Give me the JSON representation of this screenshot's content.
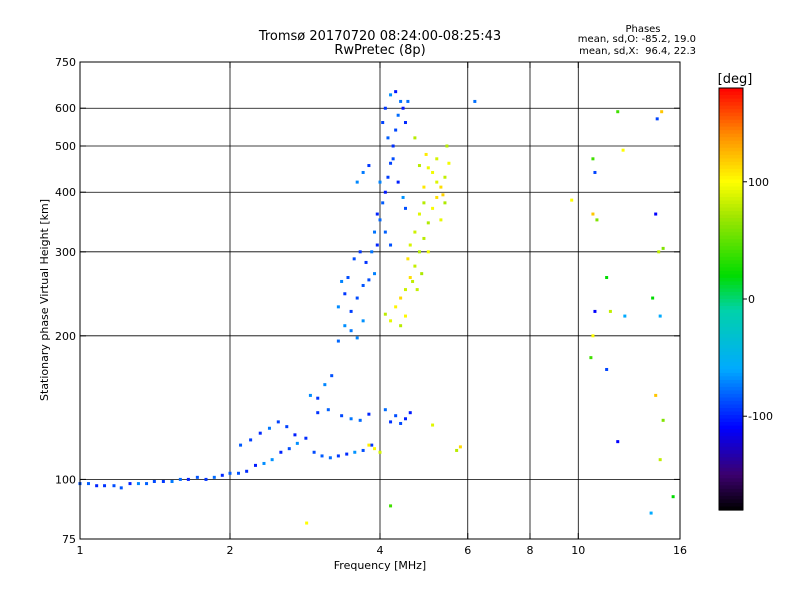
{
  "chart_data": {
    "type": "scatter",
    "title": "Tromsø 20170720 08:24:00-08:25:43",
    "subtitle": "RwPretec (8p)",
    "xlabel": "Frequency [MHz]",
    "ylabel": "Stationary phase Virtual Height [km]",
    "xscale": "log2",
    "yscale": "log",
    "xlim": [
      1,
      16
    ],
    "ylim": [
      75,
      750
    ],
    "x_ticks": [
      1,
      2,
      4,
      6,
      8,
      10,
      16
    ],
    "x_grid": [
      2,
      4,
      6,
      8,
      10
    ],
    "y_ticks": [
      75,
      100,
      200,
      300,
      400,
      500,
      600,
      750
    ],
    "y_grid": [
      100,
      200,
      300,
      400,
      500,
      600
    ],
    "grid": true,
    "phase_stats": {
      "title": "Phases",
      "line_o": "mean, sd,O: -85.2, 19.0",
      "line_x": "mean, sd,X:  96.4, 22.3"
    },
    "colorbar": {
      "label": "[deg]",
      "range": [
        -180,
        180
      ],
      "ticks": [
        100,
        0,
        -100
      ]
    },
    "series": [
      {
        "mode": "O",
        "mean_phase": -85.2,
        "sd_phase": 19.0,
        "points": [
          [
            1.0,
            98
          ],
          [
            1.04,
            98
          ],
          [
            1.08,
            97
          ],
          [
            1.12,
            97
          ],
          [
            1.17,
            97
          ],
          [
            1.21,
            96
          ],
          [
            1.26,
            98
          ],
          [
            1.31,
            98
          ],
          [
            1.36,
            98
          ],
          [
            1.41,
            99
          ],
          [
            1.47,
            99
          ],
          [
            1.53,
            99
          ],
          [
            1.59,
            100
          ],
          [
            1.65,
            100
          ],
          [
            1.72,
            101
          ],
          [
            1.79,
            100
          ],
          [
            1.86,
            101
          ],
          [
            1.93,
            102
          ],
          [
            2.0,
            103
          ],
          [
            2.08,
            103
          ],
          [
            2.16,
            104
          ],
          [
            2.25,
            107
          ],
          [
            2.34,
            108
          ],
          [
            2.43,
            110
          ],
          [
            2.53,
            114
          ],
          [
            2.63,
            116
          ],
          [
            2.73,
            119
          ],
          [
            2.84,
            122
          ],
          [
            2.95,
            114
          ],
          [
            3.06,
            112
          ],
          [
            3.18,
            111
          ],
          [
            3.3,
            112
          ],
          [
            3.43,
            113
          ],
          [
            3.56,
            114
          ],
          [
            3.7,
            115
          ],
          [
            3.85,
            118
          ],
          [
            2.1,
            118
          ],
          [
            2.2,
            121
          ],
          [
            2.3,
            125
          ],
          [
            2.4,
            128
          ],
          [
            2.5,
            132
          ],
          [
            2.6,
            129
          ],
          [
            2.7,
            124
          ],
          [
            2.9,
            150
          ],
          [
            3.0,
            148
          ],
          [
            3.1,
            158
          ],
          [
            3.2,
            165
          ],
          [
            3.0,
            138
          ],
          [
            3.15,
            140
          ],
          [
            3.35,
            136
          ],
          [
            3.5,
            134
          ],
          [
            3.65,
            133
          ],
          [
            3.8,
            137
          ],
          [
            4.2,
            132
          ],
          [
            4.3,
            136
          ],
          [
            4.5,
            134
          ],
          [
            4.6,
            138
          ],
          [
            4.4,
            131
          ],
          [
            4.1,
            140
          ],
          [
            3.3,
            195
          ],
          [
            3.4,
            210
          ],
          [
            3.5,
            225
          ],
          [
            3.6,
            240
          ],
          [
            3.7,
            255
          ],
          [
            3.8,
            262
          ],
          [
            3.9,
            270
          ],
          [
            3.45,
            265
          ],
          [
            3.55,
            290
          ],
          [
            3.65,
            300
          ],
          [
            3.75,
            285
          ],
          [
            3.85,
            300
          ],
          [
            3.95,
            310
          ],
          [
            3.4,
            245
          ],
          [
            3.5,
            205
          ],
          [
            3.6,
            198
          ],
          [
            3.7,
            215
          ],
          [
            3.3,
            230
          ],
          [
            3.35,
            260
          ],
          [
            3.9,
            330
          ],
          [
            4.0,
            350
          ],
          [
            4.05,
            380
          ],
          [
            4.1,
            400
          ],
          [
            4.15,
            430
          ],
          [
            4.2,
            460
          ],
          [
            4.25,
            500
          ],
          [
            4.3,
            540
          ],
          [
            4.35,
            580
          ],
          [
            4.4,
            620
          ],
          [
            4.1,
            600
          ],
          [
            4.2,
            640
          ],
          [
            4.3,
            650
          ],
          [
            4.05,
            560
          ],
          [
            4.15,
            520
          ],
          [
            4.25,
            470
          ],
          [
            4.35,
            420
          ],
          [
            4.45,
            390
          ],
          [
            4.5,
            370
          ],
          [
            4.0,
            420
          ],
          [
            4.1,
            330
          ],
          [
            4.2,
            310
          ],
          [
            3.95,
            360
          ],
          [
            3.7,
            440
          ],
          [
            3.6,
            420
          ],
          [
            3.8,
            455
          ],
          [
            4.45,
            600
          ],
          [
            4.5,
            560
          ],
          [
            4.55,
            620
          ],
          [
            6.2,
            620
          ]
        ]
      },
      {
        "mode": "X",
        "mean_phase": 96.4,
        "sd_phase": 22.3,
        "points": [
          [
            4.3,
            230
          ],
          [
            4.4,
            240
          ],
          [
            4.5,
            250
          ],
          [
            4.6,
            265
          ],
          [
            4.7,
            280
          ],
          [
            4.8,
            300
          ],
          [
            4.9,
            320
          ],
          [
            5.0,
            345
          ],
          [
            5.1,
            370
          ],
          [
            5.2,
            390
          ],
          [
            5.3,
            410
          ],
          [
            5.4,
            430
          ],
          [
            5.5,
            460
          ],
          [
            5.45,
            500
          ],
          [
            5.2,
            470
          ],
          [
            5.1,
            440
          ],
          [
            4.9,
            380
          ],
          [
            4.8,
            360
          ],
          [
            4.7,
            330
          ],
          [
            4.6,
            310
          ],
          [
            4.55,
            290
          ],
          [
            4.65,
            260
          ],
          [
            4.75,
            250
          ],
          [
            4.85,
            270
          ],
          [
            4.5,
            220
          ],
          [
            4.4,
            210
          ],
          [
            4.2,
            215
          ],
          [
            4.1,
            222
          ],
          [
            5.0,
            300
          ],
          [
            5.3,
            350
          ],
          [
            5.4,
            380
          ],
          [
            4.9,
            410
          ],
          [
            5.0,
            450
          ],
          [
            4.95,
            480
          ],
          [
            5.2,
            420
          ],
          [
            5.35,
            395
          ],
          [
            3.8,
            118
          ],
          [
            3.9,
            116
          ],
          [
            4.0,
            114
          ],
          [
            5.1,
            130
          ],
          [
            5.7,
            115
          ],
          [
            5.8,
            117
          ],
          [
            4.8,
            455
          ],
          [
            4.7,
            520
          ]
        ]
      },
      {
        "mode": "scattered",
        "points": [
          [
            9.7,
            385
          ],
          [
            10.7,
            470
          ],
          [
            10.8,
            440
          ],
          [
            10.7,
            360
          ],
          [
            10.9,
            350
          ],
          [
            10.8,
            225
          ],
          [
            11.6,
            225
          ],
          [
            11.4,
            265
          ],
          [
            12.4,
            220
          ],
          [
            12.3,
            490
          ],
          [
            12.0,
            590
          ],
          [
            14.4,
            570
          ],
          [
            14.7,
            590
          ],
          [
            14.8,
            305
          ],
          [
            14.3,
            360
          ],
          [
            14.5,
            300
          ],
          [
            14.1,
            240
          ],
          [
            14.6,
            220
          ],
          [
            10.7,
            200
          ],
          [
            10.6,
            180
          ],
          [
            11.4,
            170
          ],
          [
            14.3,
            150
          ],
          [
            14.8,
            133
          ],
          [
            12.0,
            120
          ],
          [
            14.6,
            110
          ],
          [
            15.5,
            92
          ],
          [
            14.0,
            85
          ],
          [
            2.85,
            81
          ],
          [
            4.2,
            88
          ]
        ]
      }
    ]
  }
}
